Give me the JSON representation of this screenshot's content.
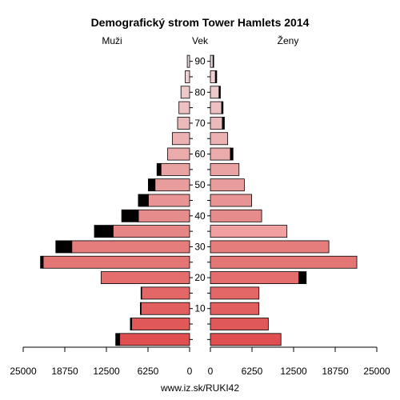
{
  "chart_data": {
    "type": "bar",
    "title": "Demografický strom Tower Hamlets 2014",
    "left_label": "Muži",
    "center_label": "Vek",
    "right_label": "Ženy",
    "footer": "www.iz.sk/RUKI42",
    "x_ticks_left": [
      "25000",
      "18750",
      "12500",
      "6250",
      "0"
    ],
    "x_ticks_right": [
      "0",
      "6250",
      "12500",
      "18750",
      "25000"
    ],
    "x_tick_values": [
      25000,
      18750,
      12500,
      6250,
      0
    ],
    "xlim": [
      0,
      25000
    ],
    "age_ticks": [
      "10",
      "20",
      "30",
      "40",
      "50",
      "60",
      "70",
      "80",
      "90"
    ],
    "age_groups": [
      "0-4",
      "5-9",
      "10-14",
      "15-19",
      "20-24",
      "25-29",
      "30-34",
      "35-39",
      "40-44",
      "45-49",
      "50-54",
      "55-59",
      "60-64",
      "65-69",
      "70-74",
      "75-79",
      "80-84",
      "85-89",
      "90+"
    ],
    "series": [
      {
        "name": "Muži",
        "values": [
          10500,
          8700,
          7300,
          7200,
          13300,
          22000,
          17700,
          11500,
          7700,
          6200,
          5200,
          4300,
          3300,
          2600,
          1800,
          1600,
          1300,
          650,
          350
        ],
        "excess": [
          600,
          200,
          100,
          100,
          0,
          400,
          2400,
          2800,
          2500,
          1500,
          1000,
          600,
          0,
          0,
          0,
          0,
          0,
          0,
          0
        ]
      },
      {
        "name": "Ženy",
        "values": [
          10600,
          8700,
          7300,
          7300,
          13300,
          22000,
          17800,
          11500,
          7700,
          6200,
          5100,
          4300,
          3000,
          2600,
          1800,
          1700,
          1300,
          750,
          400
        ],
        "excess": [
          0,
          0,
          0,
          0,
          1100,
          0,
          0,
          0,
          0,
          0,
          0,
          0,
          400,
          0,
          300,
          200,
          200,
          200,
          100
        ]
      }
    ],
    "colors": {
      "young": "#e05050",
      "middle": "#e08080",
      "old": "#ecc0c0",
      "excess": "#000000",
      "stroke": "#000000",
      "highlight": "#f0a0a0"
    },
    "highlight_female_group": "35-39"
  }
}
